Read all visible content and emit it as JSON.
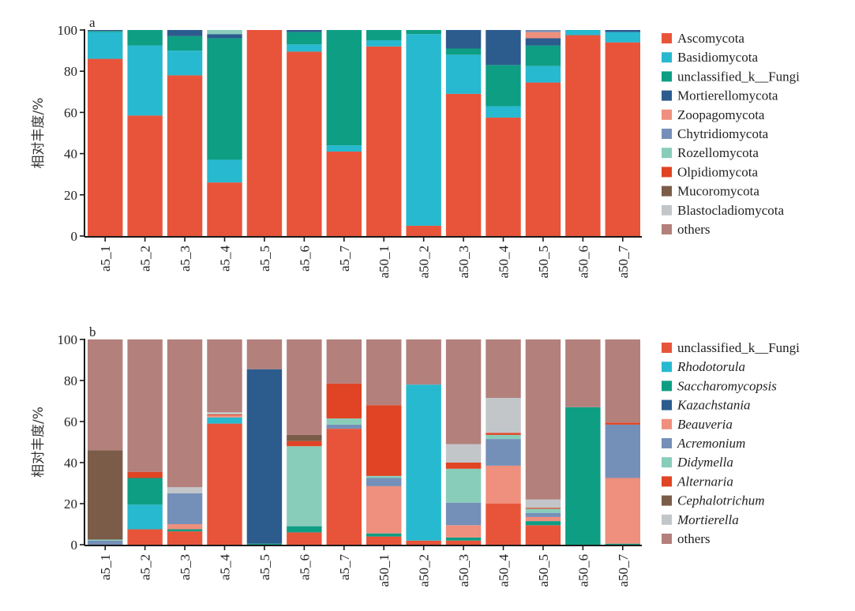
{
  "chart_data": [
    {
      "type": "bar",
      "stacked": true,
      "panel_label": "a",
      "title": "",
      "xlabel": "",
      "ylabel": "相对丰度/%",
      "ylim": [
        0,
        100
      ],
      "yticks": [
        0,
        20,
        40,
        60,
        80,
        100
      ],
      "grid": false,
      "legend_position": "right",
      "legend_italic": false,
      "categories": [
        "a5_1",
        "a5_2",
        "a5_3",
        "a5_4",
        "a5_5",
        "a5_6",
        "a5_7",
        "a50_1",
        "a50_2",
        "a50_3",
        "a50_4",
        "a50_5",
        "a50_6",
        "a50_7"
      ],
      "series": [
        {
          "name": "Ascomycota",
          "color": "#E8543A",
          "values": [
            86,
            58.5,
            78,
            26,
            100,
            89.5,
            41,
            92,
            5,
            69,
            57.5,
            74.5,
            97.5,
            94
          ]
        },
        {
          "name": "Basidiomycota",
          "color": "#27B9CF",
          "values": [
            13,
            34,
            12,
            11,
            0,
            3.5,
            3,
            3,
            93,
            19,
            5.5,
            8,
            2.5,
            5
          ]
        },
        {
          "name": "unclassified_k__Fungi",
          "color": "#0E9E84",
          "values": [
            0.5,
            7.5,
            7,
            59,
            0,
            6,
            56,
            5,
            2,
            3,
            20,
            10,
            0,
            0
          ]
        },
        {
          "name": "Mortierellomycota",
          "color": "#2C5B8E",
          "values": [
            0.5,
            0,
            3,
            2,
            0,
            1,
            0,
            0,
            0,
            9,
            17,
            3.5,
            0,
            1
          ]
        },
        {
          "name": "Zoopagomycota",
          "color": "#EF8F7D",
          "values": [
            0,
            0,
            0,
            0,
            0,
            0,
            0,
            0,
            0,
            0,
            0,
            3,
            0,
            0
          ]
        },
        {
          "name": "Chytridiomycota",
          "color": "#7590B8",
          "values": [
            0,
            0,
            0,
            0,
            0,
            0,
            0,
            0,
            0,
            0,
            0,
            1,
            0,
            0
          ]
        },
        {
          "name": "Rozellomycota",
          "color": "#88CDBA",
          "values": [
            0,
            0,
            0,
            2,
            0,
            0,
            0,
            0,
            0,
            0,
            0,
            0,
            0,
            0
          ]
        },
        {
          "name": "Olpidiomycota",
          "color": "#E04424",
          "values": [
            0,
            0,
            0,
            0,
            0,
            0,
            0,
            0,
            0,
            0,
            0,
            0,
            0,
            0
          ]
        },
        {
          "name": "Mucoromycota",
          "color": "#7A5C48",
          "values": [
            0,
            0,
            0,
            0,
            0,
            0,
            0,
            0,
            0,
            0,
            0,
            0,
            0,
            0
          ]
        },
        {
          "name": "Blastocladiomycota",
          "color": "#C2C6C9",
          "values": [
            0,
            0,
            0,
            0,
            0,
            0,
            0,
            0,
            0,
            0,
            0,
            0,
            0,
            0
          ]
        },
        {
          "name": "others",
          "color": "#B3807C",
          "values": [
            0,
            0,
            0,
            0,
            0,
            0,
            0,
            0,
            0,
            0,
            0,
            0,
            0,
            0
          ]
        }
      ]
    },
    {
      "type": "bar",
      "stacked": true,
      "panel_label": "b",
      "title": "",
      "xlabel": "",
      "ylabel": "相对丰度/%",
      "ylim": [
        0,
        100
      ],
      "yticks": [
        0,
        20,
        40,
        60,
        80,
        100
      ],
      "grid": false,
      "legend_position": "right",
      "legend_italic": true,
      "categories": [
        "a5_1",
        "a5_2",
        "a5_3",
        "a5_4",
        "a5_5",
        "a5_6",
        "a5_7",
        "a50_1",
        "a50_2",
        "a50_3",
        "a50_4",
        "a50_5",
        "a50_6",
        "a50_7"
      ],
      "series": [
        {
          "name": "unclassified_k__Fungi",
          "italic": false,
          "color": "#E8543A",
          "values": [
            0,
            7.5,
            6.5,
            59,
            0,
            6,
            56.5,
            4,
            2,
            2,
            20,
            9.5,
            0,
            0
          ]
        },
        {
          "name": "Rhodotorula",
          "italic": true,
          "color": "#27B9CF",
          "values": [
            0,
            12,
            0,
            3,
            0,
            0,
            0,
            0,
            76,
            0,
            0,
            0,
            0,
            0
          ]
        },
        {
          "name": "Saccharomycopsis",
          "italic": true,
          "color": "#0E9E84",
          "values": [
            0,
            13,
            1,
            0,
            0.5,
            3,
            0,
            1.5,
            0,
            1.5,
            0,
            2,
            67,
            0.5
          ]
        },
        {
          "name": "Kazachstania",
          "italic": true,
          "color": "#2C5B8E",
          "values": [
            0,
            0,
            0,
            0,
            85,
            0,
            0,
            0,
            0,
            0,
            0,
            0,
            0,
            0
          ]
        },
        {
          "name": "Beauveria",
          "italic": true,
          "color": "#EF8F7D",
          "values": [
            0,
            0,
            2.5,
            1,
            0,
            0,
            0,
            23,
            0,
            6,
            18.5,
            2,
            0,
            32
          ]
        },
        {
          "name": "Acremonium",
          "italic": true,
          "color": "#7590B8",
          "values": [
            2,
            0,
            15,
            0,
            0,
            0,
            2,
            4,
            0,
            11,
            13,
            2,
            0,
            26
          ]
        },
        {
          "name": "Didymella",
          "italic": true,
          "color": "#88CDBA",
          "values": [
            0.5,
            0,
            0,
            0,
            0,
            39,
            3,
            1,
            0,
            16.5,
            2,
            2,
            0,
            0
          ]
        },
        {
          "name": "Alternaria",
          "italic": true,
          "color": "#E04424",
          "values": [
            0,
            3,
            0,
            0.5,
            0,
            2.5,
            17,
            34.5,
            0,
            3,
            1,
            0.5,
            0,
            1
          ]
        },
        {
          "name": "Cephalotrichum",
          "italic": true,
          "color": "#7A5C48",
          "values": [
            43.5,
            0,
            0,
            0,
            0,
            3,
            0,
            0,
            0,
            0,
            0,
            0,
            0,
            0
          ]
        },
        {
          "name": "Mortierella",
          "italic": true,
          "color": "#C2C6C9",
          "values": [
            0,
            0,
            3,
            1,
            0,
            0,
            0,
            0,
            0,
            9,
            17,
            4,
            0,
            0
          ]
        },
        {
          "name": "others",
          "italic": false,
          "color": "#B3807C",
          "values": [
            54,
            64.5,
            72,
            35.5,
            14.5,
            46.5,
            21.5,
            32,
            22,
            51,
            28.5,
            78,
            33,
            40.5
          ]
        }
      ]
    }
  ]
}
